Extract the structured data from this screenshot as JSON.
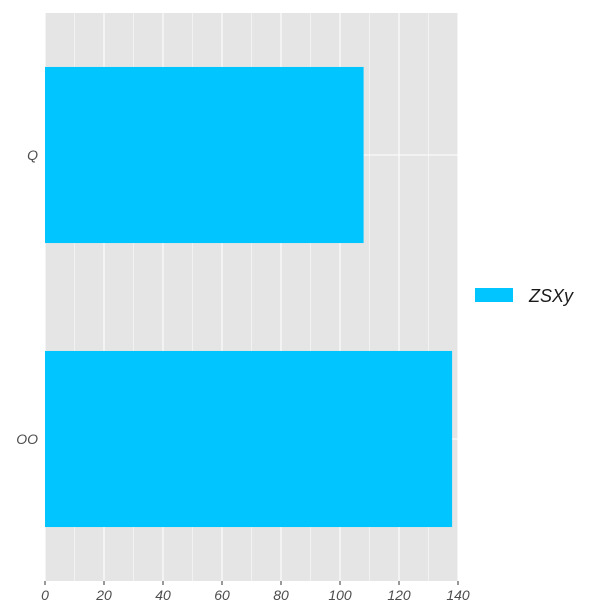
{
  "chart_data": {
    "type": "bar",
    "orientation": "horizontal",
    "categories": [
      "Q",
      "OO"
    ],
    "series": [
      {
        "name": "ZSXy",
        "values": [
          108,
          138
        ]
      }
    ],
    "xlim": [
      0,
      140
    ],
    "x_ticks": [
      0,
      20,
      40,
      60,
      80,
      100,
      120,
      140
    ],
    "grid": true,
    "legend_position": "right",
    "colors": {
      "bar": "#00c5ff",
      "panel": "#e5e5e5",
      "grid": "#ffffff"
    }
  }
}
